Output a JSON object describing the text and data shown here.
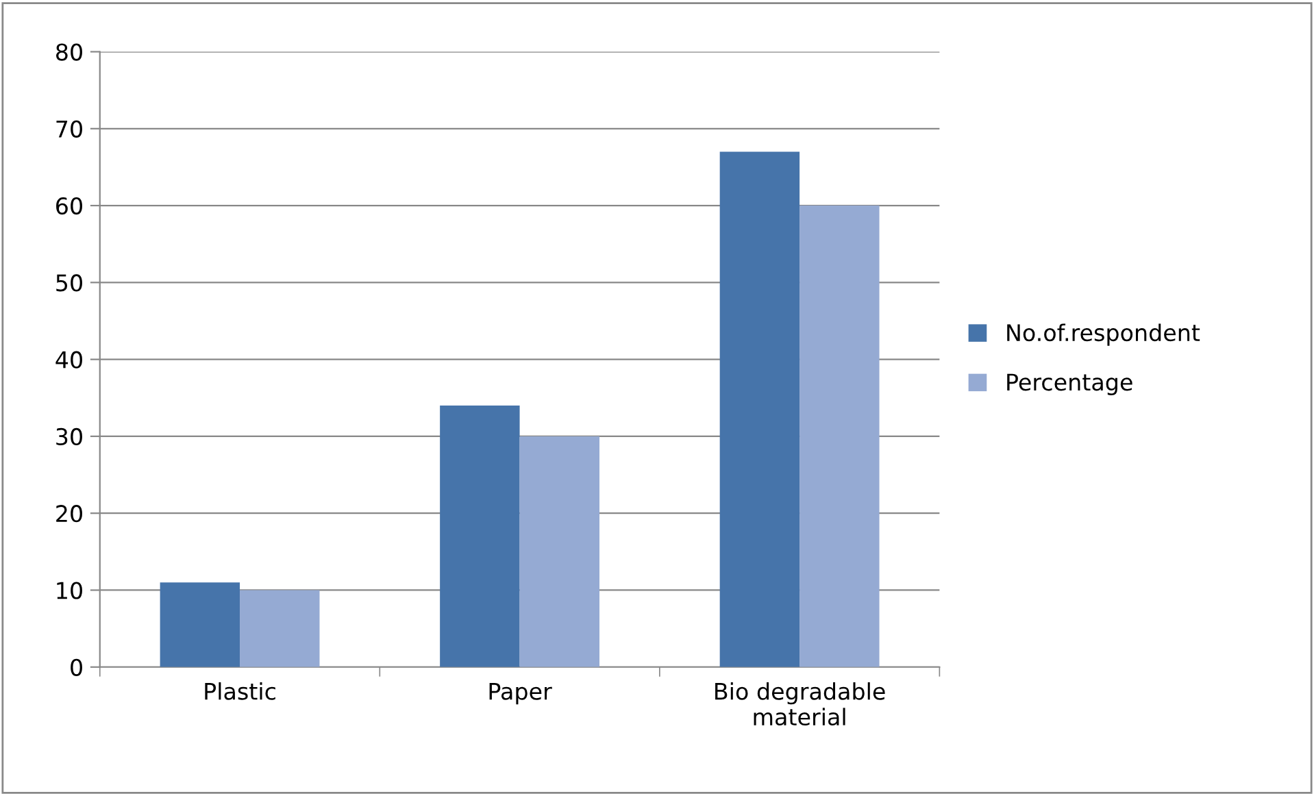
{
  "chart_data": {
    "type": "bar",
    "categories": [
      "Plastic",
      "Paper",
      "Bio degradable\nmaterial"
    ],
    "series": [
      {
        "name": "No.of.respondent",
        "color": "#4674aa",
        "values": [
          11,
          34,
          67
        ]
      },
      {
        "name": "Percentage",
        "color": "#95aad3",
        "values": [
          10,
          30,
          60
        ]
      }
    ],
    "ylim": [
      0,
      80
    ],
    "yticks": [
      0,
      10,
      20,
      30,
      40,
      50,
      60,
      70,
      80
    ],
    "grid": "y",
    "legend": "right"
  }
}
